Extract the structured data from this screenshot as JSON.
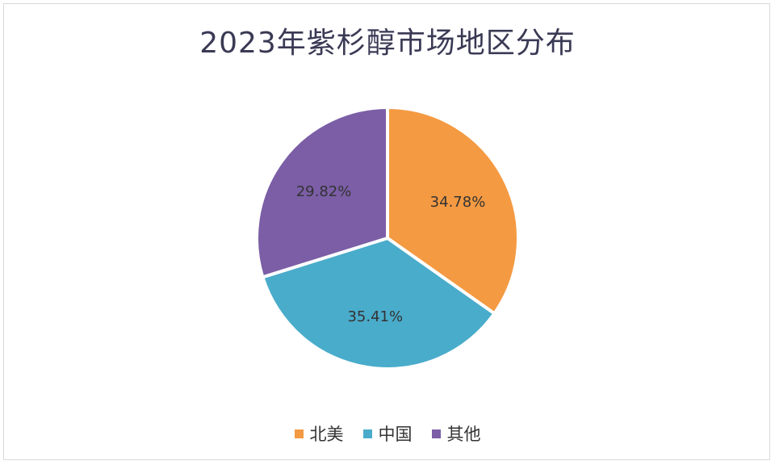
{
  "chart_data": {
    "type": "pie",
    "title": "2023年紫杉醇市场地区分布",
    "slices": [
      {
        "label": "北美",
        "value": 34.78,
        "value_label": "34.78%",
        "color": "#f49a42"
      },
      {
        "label": "中国",
        "value": 35.41,
        "value_label": "35.41%",
        "color": "#4aaccb"
      },
      {
        "label": "其他",
        "value": 29.82,
        "value_label": "29.82%",
        "color": "#7b5ea6"
      }
    ],
    "legend_position": "bottom",
    "start_angle": "12 o'clock",
    "direction": "clockwise"
  }
}
